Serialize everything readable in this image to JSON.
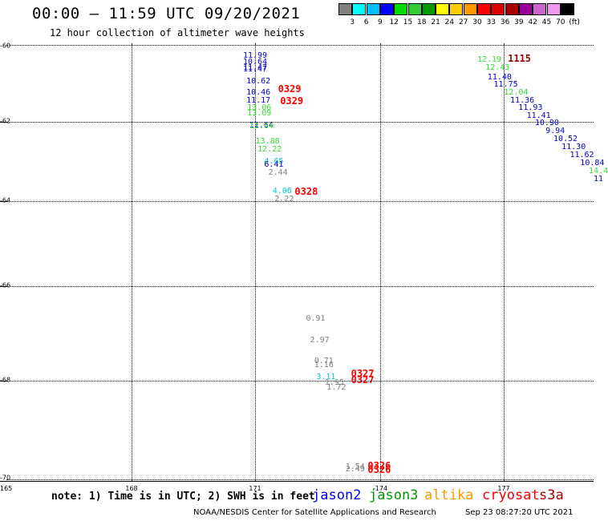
{
  "title": "00:00 – 11:59 UTC 09/20/2021",
  "subtitle": "12 hour collection of altimeter wave heights",
  "legend": {
    "colors": [
      "#808080",
      "#00ffff",
      "#00bfff",
      "#0000ff",
      "#00dd00",
      "#33cc33",
      "#009900",
      "#ffff00",
      "#ffcc00",
      "#ff9900",
      "#ff0000",
      "#dd0000",
      "#aa0000",
      "#990099",
      "#cc66cc",
      "#ee99ee",
      "#000000"
    ],
    "labels": [
      "3",
      "6",
      "9",
      "12",
      "15",
      "18",
      "21",
      "24",
      "27",
      "30",
      "33",
      "36",
      "39",
      "42",
      "45",
      "70",
      "(ft)"
    ]
  },
  "axes": {
    "lat_ticks": [
      "-60",
      "-62",
      "-64",
      "-66",
      "-68",
      "-70"
    ],
    "lon_ticks": [
      "168",
      "171",
      "-174",
      "177"
    ],
    "corner_label": "165"
  },
  "observations": [
    {
      "t": "11.99",
      "c": "#0000cc",
      "lon": 171.0,
      "lat": -60.3
    },
    {
      "t": "10.64",
      "c": "#0000cc",
      "lon": 171.0,
      "lat": -60.45
    },
    {
      "t": "11.47",
      "c": "#0000cc",
      "lon": 171.0,
      "lat": -60.6
    },
    {
      "t": "11.47",
      "c": "#0000cc",
      "lon": 171.0,
      "lat": -60.65
    },
    {
      "t": "10.62",
      "c": "#0000cc",
      "lon": 171.08,
      "lat": -60.95
    },
    {
      "t": "10.46",
      "c": "#0000cc",
      "lon": 171.08,
      "lat": -61.25
    },
    {
      "t": "11.17",
      "c": "#0000cc",
      "lon": 171.08,
      "lat": -61.45
    },
    {
      "t": "13.06",
      "c": "#33dd33",
      "lon": 171.1,
      "lat": -61.65
    },
    {
      "t": "13.09",
      "c": "#33dd33",
      "lon": 171.1,
      "lat": -61.8
    },
    {
      "t": "11.64",
      "c": "#0000cc",
      "lon": 171.15,
      "lat": -62.1
    },
    {
      "t": "12.64",
      "c": "#33dd33",
      "lon": 171.15,
      "lat": -62.12
    },
    {
      "t": "13.88",
      "c": "#33dd33",
      "lon": 171.3,
      "lat": -62.5
    },
    {
      "t": "12.22",
      "c": "#33dd33",
      "lon": 171.35,
      "lat": -62.7
    },
    {
      "t": "4.65",
      "c": "#00cccc",
      "lon": 171.45,
      "lat": -63.0
    },
    {
      "t": "6.41",
      "c": "#0000cc",
      "lon": 171.45,
      "lat": -63.1
    },
    {
      "t": "2.44",
      "c": "#808080",
      "lon": 171.55,
      "lat": -63.3
    },
    {
      "t": "4.06",
      "c": "#00cccc",
      "lon": 171.65,
      "lat": -63.75
    },
    {
      "t": "2.22",
      "c": "#808080",
      "lon": 171.7,
      "lat": -63.95
    },
    {
      "t": "0.91",
      "c": "#808080",
      "lon": 172.45,
      "lat": -66.7
    },
    {
      "t": "2.97",
      "c": "#808080",
      "lon": 172.55,
      "lat": -67.15
    },
    {
      "t": "0.71",
      "c": "#808080",
      "lon": 172.65,
      "lat": -67.6
    },
    {
      "t": "1.16",
      "c": "#808080",
      "lon": 172.65,
      "lat": -67.68
    },
    {
      "t": "3.11",
      "c": "#00cccc",
      "lon": 172.7,
      "lat": -67.93
    },
    {
      "t": "1.95",
      "c": "#808080",
      "lon": 172.9,
      "lat": -68.05
    },
    {
      "t": "1.72",
      "c": "#808080",
      "lon": 172.95,
      "lat": -68.15
    },
    {
      "t": "1.54",
      "c": "#808080",
      "lon": 173.4,
      "lat": -69.75
    },
    {
      "t": "2.49",
      "c": "#808080",
      "lon": 173.4,
      "lat": -69.8
    },
    {
      "t": "12.19",
      "c": "#33dd33",
      "lon": 176.65,
      "lat": -60.4
    },
    {
      "t": "12.43",
      "c": "#33dd33",
      "lon": 176.85,
      "lat": -60.6
    },
    {
      "t": "11.40",
      "c": "#0000cc",
      "lon": 176.9,
      "lat": -60.85
    },
    {
      "t": "11.75",
      "c": "#0000cc",
      "lon": 177.05,
      "lat": -61.05
    },
    {
      "t": "12.04",
      "c": "#33dd33",
      "lon": 177.3,
      "lat": -61.25
    },
    {
      "t": "11.36",
      "c": "#0000cc",
      "lon": 177.45,
      "lat": -61.45
    },
    {
      "t": "11.93",
      "c": "#0000cc",
      "lon": 177.65,
      "lat": -61.65
    },
    {
      "t": "11.41",
      "c": "#0000cc",
      "lon": 177.85,
      "lat": -61.85
    },
    {
      "t": "10.90",
      "c": "#0000cc",
      "lon": 178.05,
      "lat": -62.05
    },
    {
      "t": "9.94",
      "c": "#0000cc",
      "lon": 178.25,
      "lat": -62.25
    },
    {
      "t": "10.52",
      "c": "#0000cc",
      "lon": 178.5,
      "lat": -62.45
    },
    {
      "t": "11.30",
      "c": "#0000cc",
      "lon": 178.7,
      "lat": -62.65
    },
    {
      "t": "11.62",
      "c": "#0000cc",
      "lon": 178.9,
      "lat": -62.85
    },
    {
      "t": "10.84",
      "c": "#0000cc",
      "lon": 179.15,
      "lat": -63.05
    },
    {
      "t": "14.4",
      "c": "#33dd33",
      "lon": 179.3,
      "lat": -63.25
    },
    {
      "t": "11",
      "c": "#0000cc",
      "lon": 179.3,
      "lat": -63.45
    }
  ],
  "time_labels": [
    {
      "t": "1115",
      "c": "#990000",
      "lon": 177.1,
      "lat": -60.35
    },
    {
      "t": "0329",
      "c": "#ff0000",
      "lon": 171.55,
      "lat": -61.15
    },
    {
      "t": "0329",
      "c": "#ff0000",
      "lon": 171.6,
      "lat": -61.45
    },
    {
      "t": "0328",
      "c": "#ff0000",
      "lon": 171.95,
      "lat": -63.75
    },
    {
      "t": "0327",
      "c": "#ff0000",
      "lon": 173.3,
      "lat": -67.85
    },
    {
      "t": "0327",
      "c": "#ff0000",
      "lon": 173.3,
      "lat": -67.98
    },
    {
      "t": "0326",
      "c": "#ff0000",
      "lon": 173.7,
      "lat": -69.72
    },
    {
      "t": "0326",
      "c": "#ff0000",
      "lon": 173.7,
      "lat": -69.8
    }
  ],
  "note": "note: 1) Time is in UTC; 2) SWH is in feet",
  "satellites": [
    {
      "name": "jason2",
      "color": "#0000ff"
    },
    {
      "name": "jason3",
      "color": "#009900"
    },
    {
      "name": "altika",
      "color": "#ff9900"
    },
    {
      "name": "cryosat",
      "color": "#ff0000"
    },
    {
      "name": "s3a",
      "color": "#aa0000"
    }
  ],
  "footer": "NOAA/NESDIS Center for Satellite Applications and Research",
  "footer_timestamp": "Sep 23 08:27:20 UTC 2021"
}
